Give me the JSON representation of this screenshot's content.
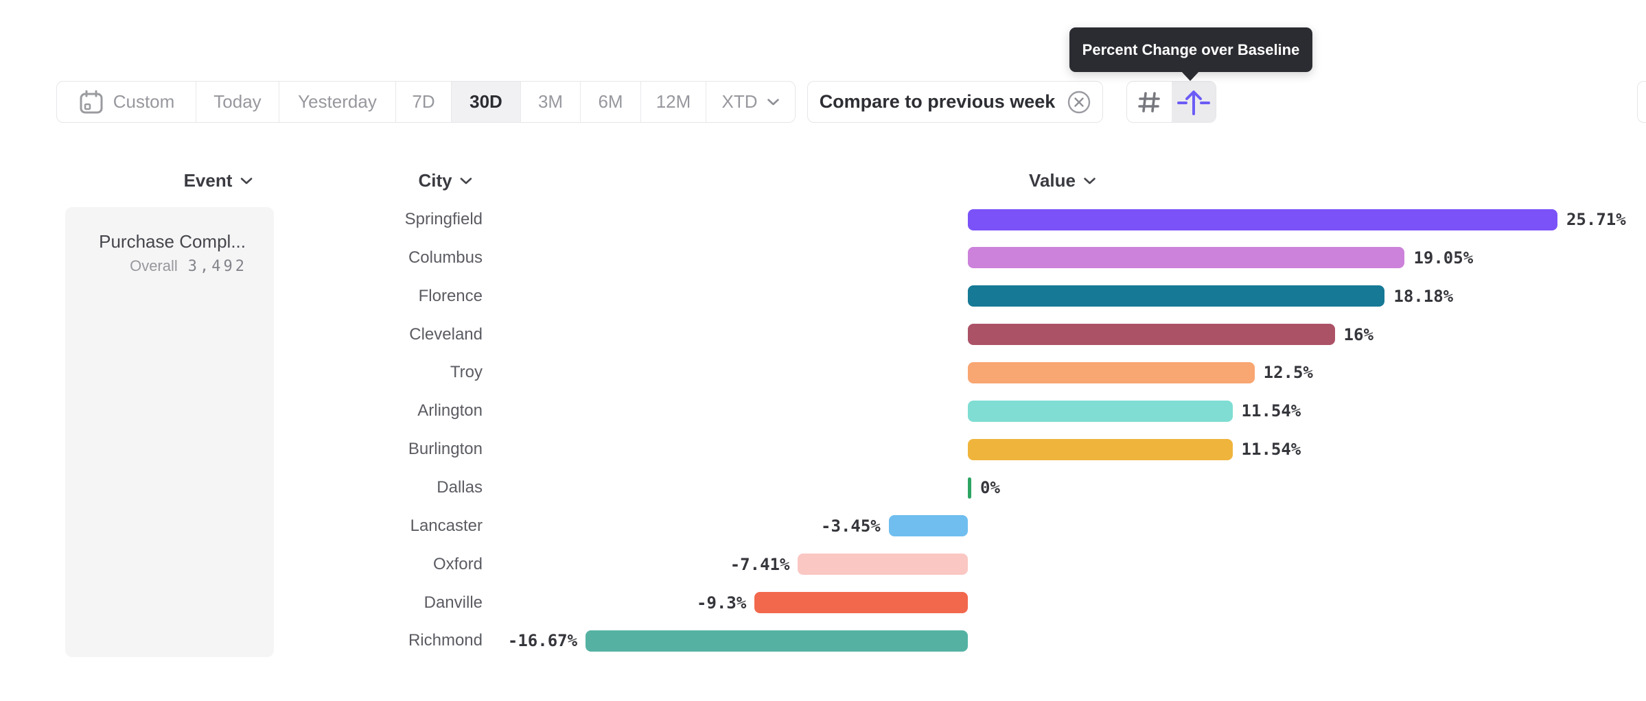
{
  "tooltip": {
    "text": "Percent Change over Baseline"
  },
  "toolbar": {
    "presets": [
      {
        "label": "Custom",
        "icon": "calendar-icon",
        "active": false
      },
      {
        "label": "Today",
        "active": false
      },
      {
        "label": "Yesterday",
        "active": false
      },
      {
        "label": "7D",
        "active": false
      },
      {
        "label": "30D",
        "active": true
      },
      {
        "label": "3M",
        "active": false
      },
      {
        "label": "6M",
        "active": false
      },
      {
        "label": "12M",
        "active": false
      },
      {
        "label": "XTD",
        "chevron": true,
        "active": false
      }
    ],
    "compare": {
      "label": "Compare to previous week",
      "icon": "circle-x-icon"
    },
    "view_buttons": [
      {
        "name": "grid-view-button",
        "icon": "hash-icon",
        "active": false
      },
      {
        "name": "percent-change-button",
        "icon": "baseline-arrow-icon",
        "active": true
      }
    ]
  },
  "columns": {
    "event": "Event",
    "city": "City",
    "value": "Value"
  },
  "event_panel": {
    "title": "Purchase Compl...",
    "overall_label": "Overall",
    "overall_value": "3,492"
  },
  "chart_data": {
    "type": "bar",
    "orientation": "horizontal",
    "title": "Percent Change over Baseline",
    "categories": [
      "Springfield",
      "Columbus",
      "Florence",
      "Cleveland",
      "Troy",
      "Arlington",
      "Burlington",
      "Dallas",
      "Lancaster",
      "Oxford",
      "Danville",
      "Richmond"
    ],
    "values": [
      25.71,
      19.05,
      18.18,
      16,
      12.5,
      11.54,
      11.54,
      0,
      -3.45,
      -7.41,
      -9.3,
      -16.67
    ],
    "value_labels": [
      "25.71%",
      "19.05%",
      "18.18%",
      "16%",
      "12.5%",
      "11.54%",
      "11.54%",
      "0%",
      "-3.45%",
      "-7.41%",
      "-9.3%",
      "-16.67%"
    ],
    "bar_colors": [
      "#7B52F7",
      "#CC82DA",
      "#167995",
      "#AC5266",
      "#F8A672",
      "#7FDDD3",
      "#EFB43C",
      "#2EA463",
      "#6FBEEF",
      "#FAC7C3",
      "#F2684D",
      "#55B2A3"
    ],
    "xlabel": "",
    "ylabel": "",
    "xlim": [
      -16.67,
      25.71
    ],
    "grid": false,
    "legend": false,
    "baseline": 0
  }
}
